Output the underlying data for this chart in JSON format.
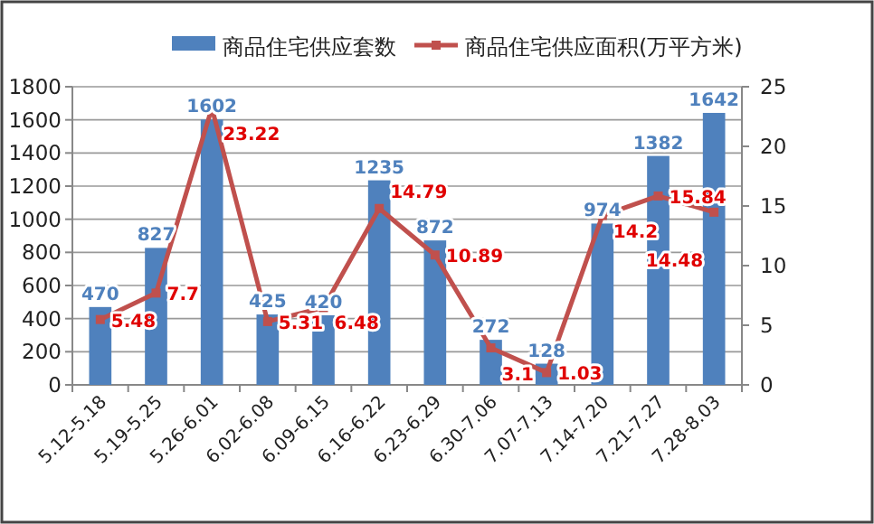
{
  "chart_data": {
    "type": "bar",
    "categories": [
      "5.12-5.18",
      "5.19-5.25",
      "5.26-6.01",
      "6.02-6.08",
      "6.09-6.15",
      "6.16-6.22",
      "6.23-6.29",
      "6.30-7.06",
      "7.07-7.13",
      "7.14-7.20",
      "7.21-7.27",
      "7.28-8.03"
    ],
    "series": [
      {
        "name": "商品住宅供应套数",
        "color": "#4f81bd",
        "values": [
          470,
          827,
          1602,
          425,
          420,
          1235,
          872,
          272,
          128,
          974,
          1382,
          1642
        ]
      },
      {
        "name": "商品住宅供应面积(万平方米)",
        "type": "line",
        "axis": "y2",
        "color": "#c0504d",
        "marker": "square",
        "values": [
          5.48,
          7.7,
          23.22,
          5.31,
          6.48,
          14.79,
          10.89,
          3.1,
          1.03,
          14.2,
          15.84,
          14.48
        ]
      }
    ],
    "ylim": [
      0,
      1800
    ],
    "yticks": [
      0,
      200,
      400,
      600,
      800,
      1000,
      1200,
      1400,
      1600,
      1800
    ],
    "y2lim": [
      0,
      25
    ],
    "y2ticks": [
      0,
      5,
      10,
      15,
      20,
      25
    ],
    "grid": "y",
    "legend": "top",
    "data_labels": true
  }
}
